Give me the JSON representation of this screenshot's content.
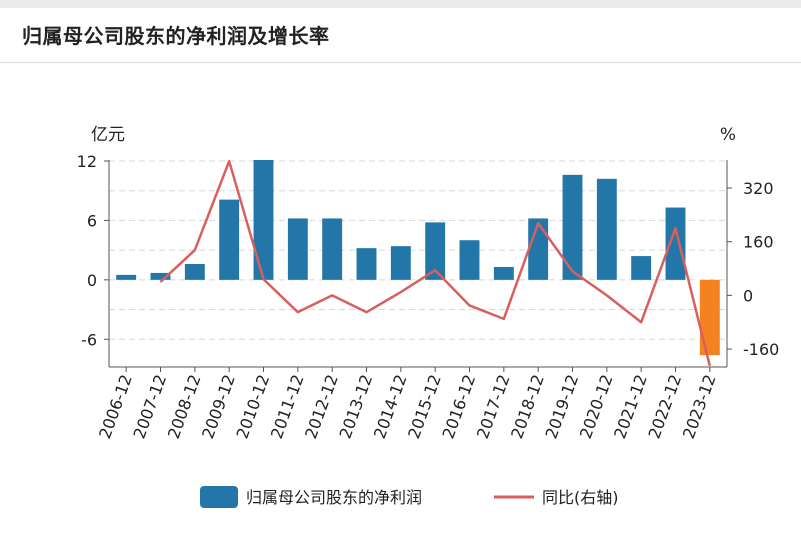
{
  "title": "归属母公司股东的净利润及增长率",
  "colors": {
    "bar": "#2277a8",
    "bar_negative": "#f4831f",
    "line": "#d95f5f",
    "grid": "#d8d8d8"
  },
  "chart_data": {
    "type": "bar",
    "title": "",
    "categories": [
      "2006-12",
      "2007-12",
      "2008-12",
      "2009-12",
      "2010-12",
      "2011-12",
      "2012-12",
      "2013-12",
      "2014-12",
      "2015-12",
      "2016-12",
      "2017-12",
      "2018-12",
      "2019-12",
      "2020-12",
      "2021-12",
      "2022-12",
      "2023-12"
    ],
    "series": [
      {
        "name": "归属母公司股东的净利润",
        "type": "bar",
        "axis": "left",
        "values": [
          0.5,
          0.7,
          1.6,
          8.1,
          12.1,
          6.2,
          6.2,
          3.2,
          3.4,
          5.8,
          4.0,
          1.3,
          6.2,
          10.6,
          10.2,
          2.4,
          7.3,
          -7.6
        ]
      },
      {
        "name": "同比(右轴)",
        "type": "line",
        "axis": "right",
        "values": [
          null,
          40,
          135,
          400,
          48,
          -50,
          0,
          -50,
          10,
          75,
          -30,
          -70,
          215,
          72,
          0,
          -80,
          200,
          -210
        ]
      }
    ],
    "y_left": {
      "unit": "亿元",
      "ticks": [
        12,
        6,
        0,
        -6
      ],
      "range": [
        -8.8,
        12.1
      ]
    },
    "y_right": {
      "unit": "%",
      "ticks": [
        320,
        160,
        0,
        -160
      ],
      "range": [
        -213.5,
        403.6
      ]
    },
    "grid": true,
    "legend_position": "bottom"
  }
}
